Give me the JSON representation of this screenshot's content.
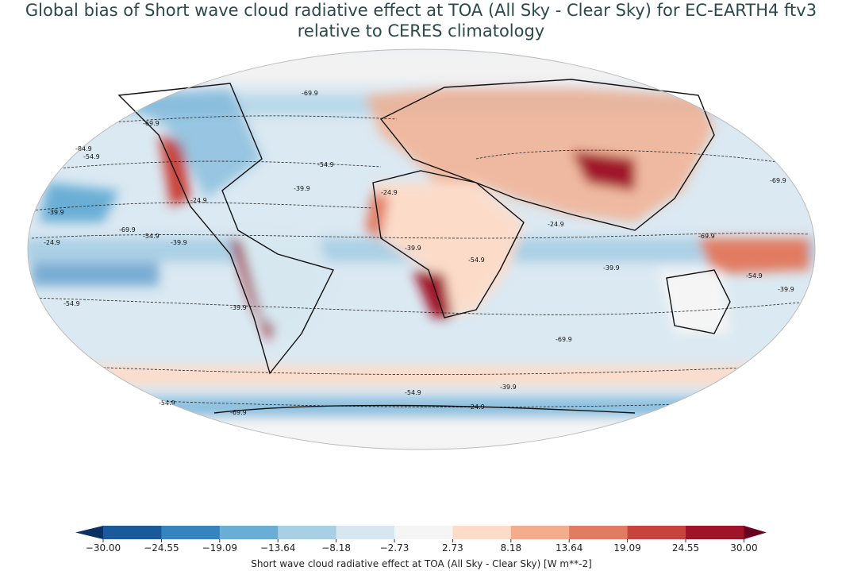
{
  "title_line1": "Global bias of Short wave cloud radiative effect at TOA (All Sky - Clear Sky) for EC-EARTH4 ftv3",
  "title_line2": "relative to CERES climatology",
  "colorbar": {
    "label": "Short wave cloud radiative effect at TOA (All Sky - Clear Sky) [W m**-2]",
    "ticks": [
      "−30.00",
      "−24.55",
      "−19.09",
      "−13.64",
      "−8.18",
      "−2.73",
      "2.73",
      "8.18",
      "13.64",
      "19.09",
      "24.55",
      "30.00"
    ],
    "colors": [
      "#1a5a9c",
      "#3684bf",
      "#6baed5",
      "#a8d0e4",
      "#d6e7f0",
      "#f5f5f5",
      "#fcdcc9",
      "#f4ad8c",
      "#e17b62",
      "#c8433b",
      "#a0142a"
    ],
    "under_color": "#0a3161",
    "over_color": "#6a0220"
  },
  "contour_labels": [
    "-54.9",
    "-39.9",
    "-24.9",
    "-69.9",
    "-84.9",
    "-69.9",
    "-54.9",
    "-39.9",
    "-24.9",
    "-69.9",
    "-54.9",
    "-39.9",
    "-24.9",
    "-54.9",
    "-39.9",
    "-24.9",
    "-69.9",
    "-54.9",
    "-39.9",
    "-69.9",
    "-54.9",
    "-39.9",
    "-69.9",
    "-54.9",
    "-39.9",
    "-24.9",
    "-54.9",
    "-69.9",
    "-39.9"
  ],
  "chart_data": {
    "type": "heatmap",
    "projection": "Robinson",
    "title": "Global bias of Short wave cloud radiative effect at TOA (All Sky - Clear Sky) for EC-EARTH4 ftv3 relative to CERES climatology",
    "colorbar_range": [
      -30,
      30
    ],
    "levels": [
      -30.0,
      -24.55,
      -19.09,
      -13.64,
      -8.18,
      -2.73,
      2.73,
      8.18,
      13.64,
      19.09,
      24.55,
      30.0
    ],
    "contour_levels_climatology": [
      -84.9,
      -69.9,
      -54.9,
      -39.9,
      -24.9
    ],
    "units": "W m**-2"
  }
}
